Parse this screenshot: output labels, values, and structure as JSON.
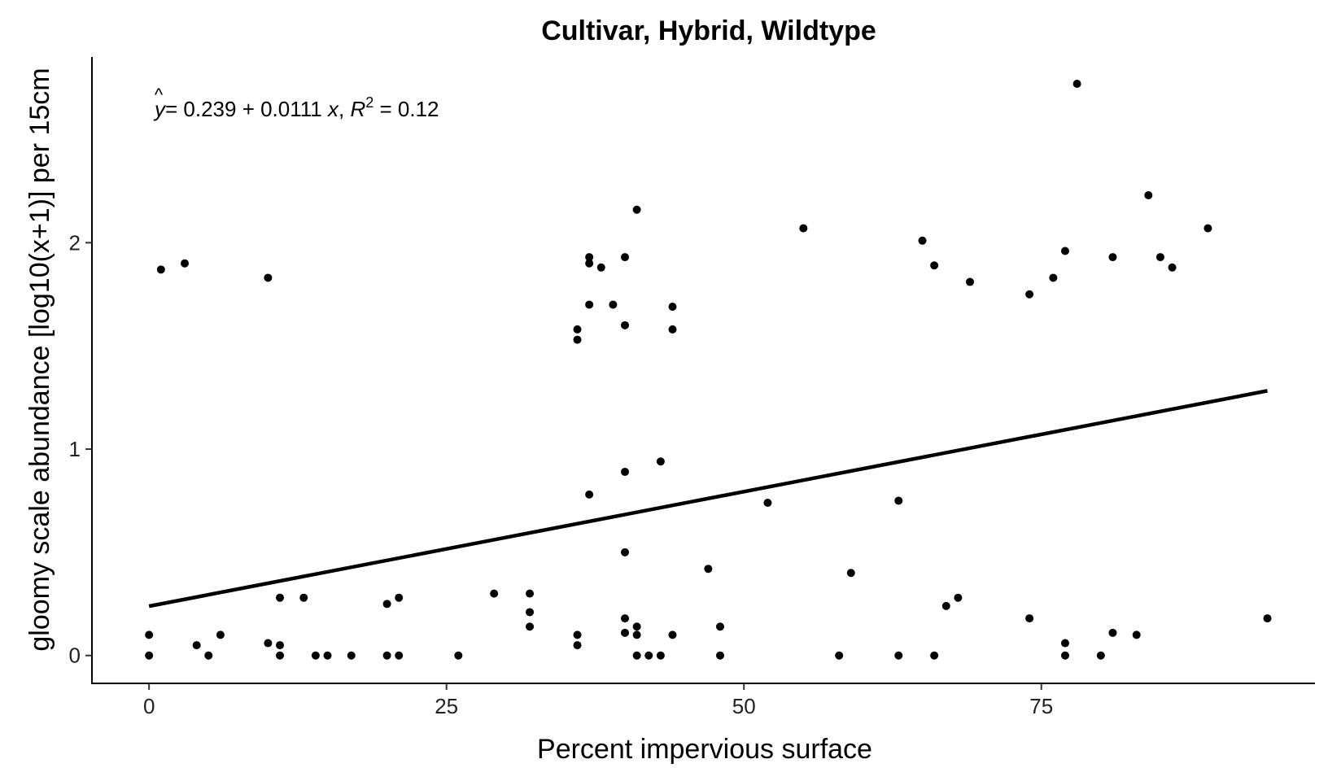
{
  "chart_data": {
    "type": "scatter",
    "title": "Cultivar, Hybrid, Wildtype",
    "xlabel": "Percent impervious surface",
    "ylabel": "gloomy scale abundance [log10(x+1)] per 15cm",
    "xlim": [
      -4.8,
      98
    ],
    "ylim": [
      -0.135,
      2.9
    ],
    "x_ticks": [
      0,
      25,
      50,
      75
    ],
    "x_tick_labels": [
      "0",
      "25",
      "50",
      "75"
    ],
    "y_ticks": [
      0,
      1,
      2
    ],
    "y_tick_labels": [
      "0",
      "1",
      "2"
    ],
    "grid": false,
    "legend": "none",
    "equation": {
      "yhat": "y",
      "eq_text": "= 0.239 + 0.0111 ",
      "x_symbol": "x",
      "comma": ", ",
      "r_symbol": "R",
      "r_exponent": "2",
      "r_value": " = 0.12"
    },
    "fit": {
      "intercept": 0.239,
      "slope": 0.0111,
      "x_range": [
        0,
        94
      ]
    },
    "points": [
      {
        "x": 0,
        "y": 0
      },
      {
        "x": 0,
        "y": 0.1
      },
      {
        "x": 1,
        "y": 1.87
      },
      {
        "x": 3,
        "y": 1.9
      },
      {
        "x": 4,
        "y": 0.05
      },
      {
        "x": 5,
        "y": 0
      },
      {
        "x": 6,
        "y": 0.1
      },
      {
        "x": 10,
        "y": 1.83
      },
      {
        "x": 10,
        "y": 0.06
      },
      {
        "x": 11,
        "y": 0.28
      },
      {
        "x": 11,
        "y": 0.05
      },
      {
        "x": 11,
        "y": 0
      },
      {
        "x": 13,
        "y": 0.28
      },
      {
        "x": 14,
        "y": 0
      },
      {
        "x": 15,
        "y": 0
      },
      {
        "x": 17,
        "y": 0
      },
      {
        "x": 20,
        "y": 0.25
      },
      {
        "x": 20,
        "y": 0
      },
      {
        "x": 21,
        "y": 0.28
      },
      {
        "x": 21,
        "y": 0
      },
      {
        "x": 26,
        "y": 0
      },
      {
        "x": 29,
        "y": 0.3
      },
      {
        "x": 32,
        "y": 0.3
      },
      {
        "x": 32,
        "y": 0.21
      },
      {
        "x": 32,
        "y": 0.14
      },
      {
        "x": 36,
        "y": 1.58
      },
      {
        "x": 36,
        "y": 1.53
      },
      {
        "x": 36,
        "y": 0.1
      },
      {
        "x": 36,
        "y": 0.05
      },
      {
        "x": 37,
        "y": 1.93
      },
      {
        "x": 37,
        "y": 1.9
      },
      {
        "x": 37,
        "y": 1.7
      },
      {
        "x": 37,
        "y": 0.78
      },
      {
        "x": 38,
        "y": 1.88
      },
      {
        "x": 39,
        "y": 1.7
      },
      {
        "x": 40,
        "y": 1.93
      },
      {
        "x": 40,
        "y": 1.6
      },
      {
        "x": 40,
        "y": 0.89
      },
      {
        "x": 40,
        "y": 0.5
      },
      {
        "x": 40,
        "y": 0.18
      },
      {
        "x": 40,
        "y": 0.11
      },
      {
        "x": 41,
        "y": 2.16
      },
      {
        "x": 41,
        "y": 0.14
      },
      {
        "x": 41,
        "y": 0.1
      },
      {
        "x": 41,
        "y": 0
      },
      {
        "x": 42,
        "y": 0
      },
      {
        "x": 43,
        "y": 0.94
      },
      {
        "x": 43,
        "y": 0
      },
      {
        "x": 44,
        "y": 1.69
      },
      {
        "x": 44,
        "y": 1.58
      },
      {
        "x": 44,
        "y": 0.1
      },
      {
        "x": 47,
        "y": 0.42
      },
      {
        "x": 48,
        "y": 0.14
      },
      {
        "x": 48,
        "y": 0
      },
      {
        "x": 52,
        "y": 0.74
      },
      {
        "x": 55,
        "y": 2.07
      },
      {
        "x": 58,
        "y": 0
      },
      {
        "x": 59,
        "y": 0.4
      },
      {
        "x": 63,
        "y": 0.75
      },
      {
        "x": 63,
        "y": 0
      },
      {
        "x": 65,
        "y": 2.01
      },
      {
        "x": 66,
        "y": 1.89
      },
      {
        "x": 66,
        "y": 0
      },
      {
        "x": 67,
        "y": 0.24
      },
      {
        "x": 68,
        "y": 0.28
      },
      {
        "x": 69,
        "y": 1.81
      },
      {
        "x": 74,
        "y": 1.75
      },
      {
        "x": 74,
        "y": 0.18
      },
      {
        "x": 76,
        "y": 1.83
      },
      {
        "x": 77,
        "y": 1.96
      },
      {
        "x": 77,
        "y": 0.06
      },
      {
        "x": 77,
        "y": 0
      },
      {
        "x": 78,
        "y": 2.77
      },
      {
        "x": 80,
        "y": 0
      },
      {
        "x": 81,
        "y": 1.93
      },
      {
        "x": 81,
        "y": 0.11
      },
      {
        "x": 83,
        "y": 0.1
      },
      {
        "x": 84,
        "y": 2.23
      },
      {
        "x": 85,
        "y": 1.93
      },
      {
        "x": 86,
        "y": 1.88
      },
      {
        "x": 89,
        "y": 2.07
      },
      {
        "x": 94,
        "y": 0.18
      }
    ]
  }
}
